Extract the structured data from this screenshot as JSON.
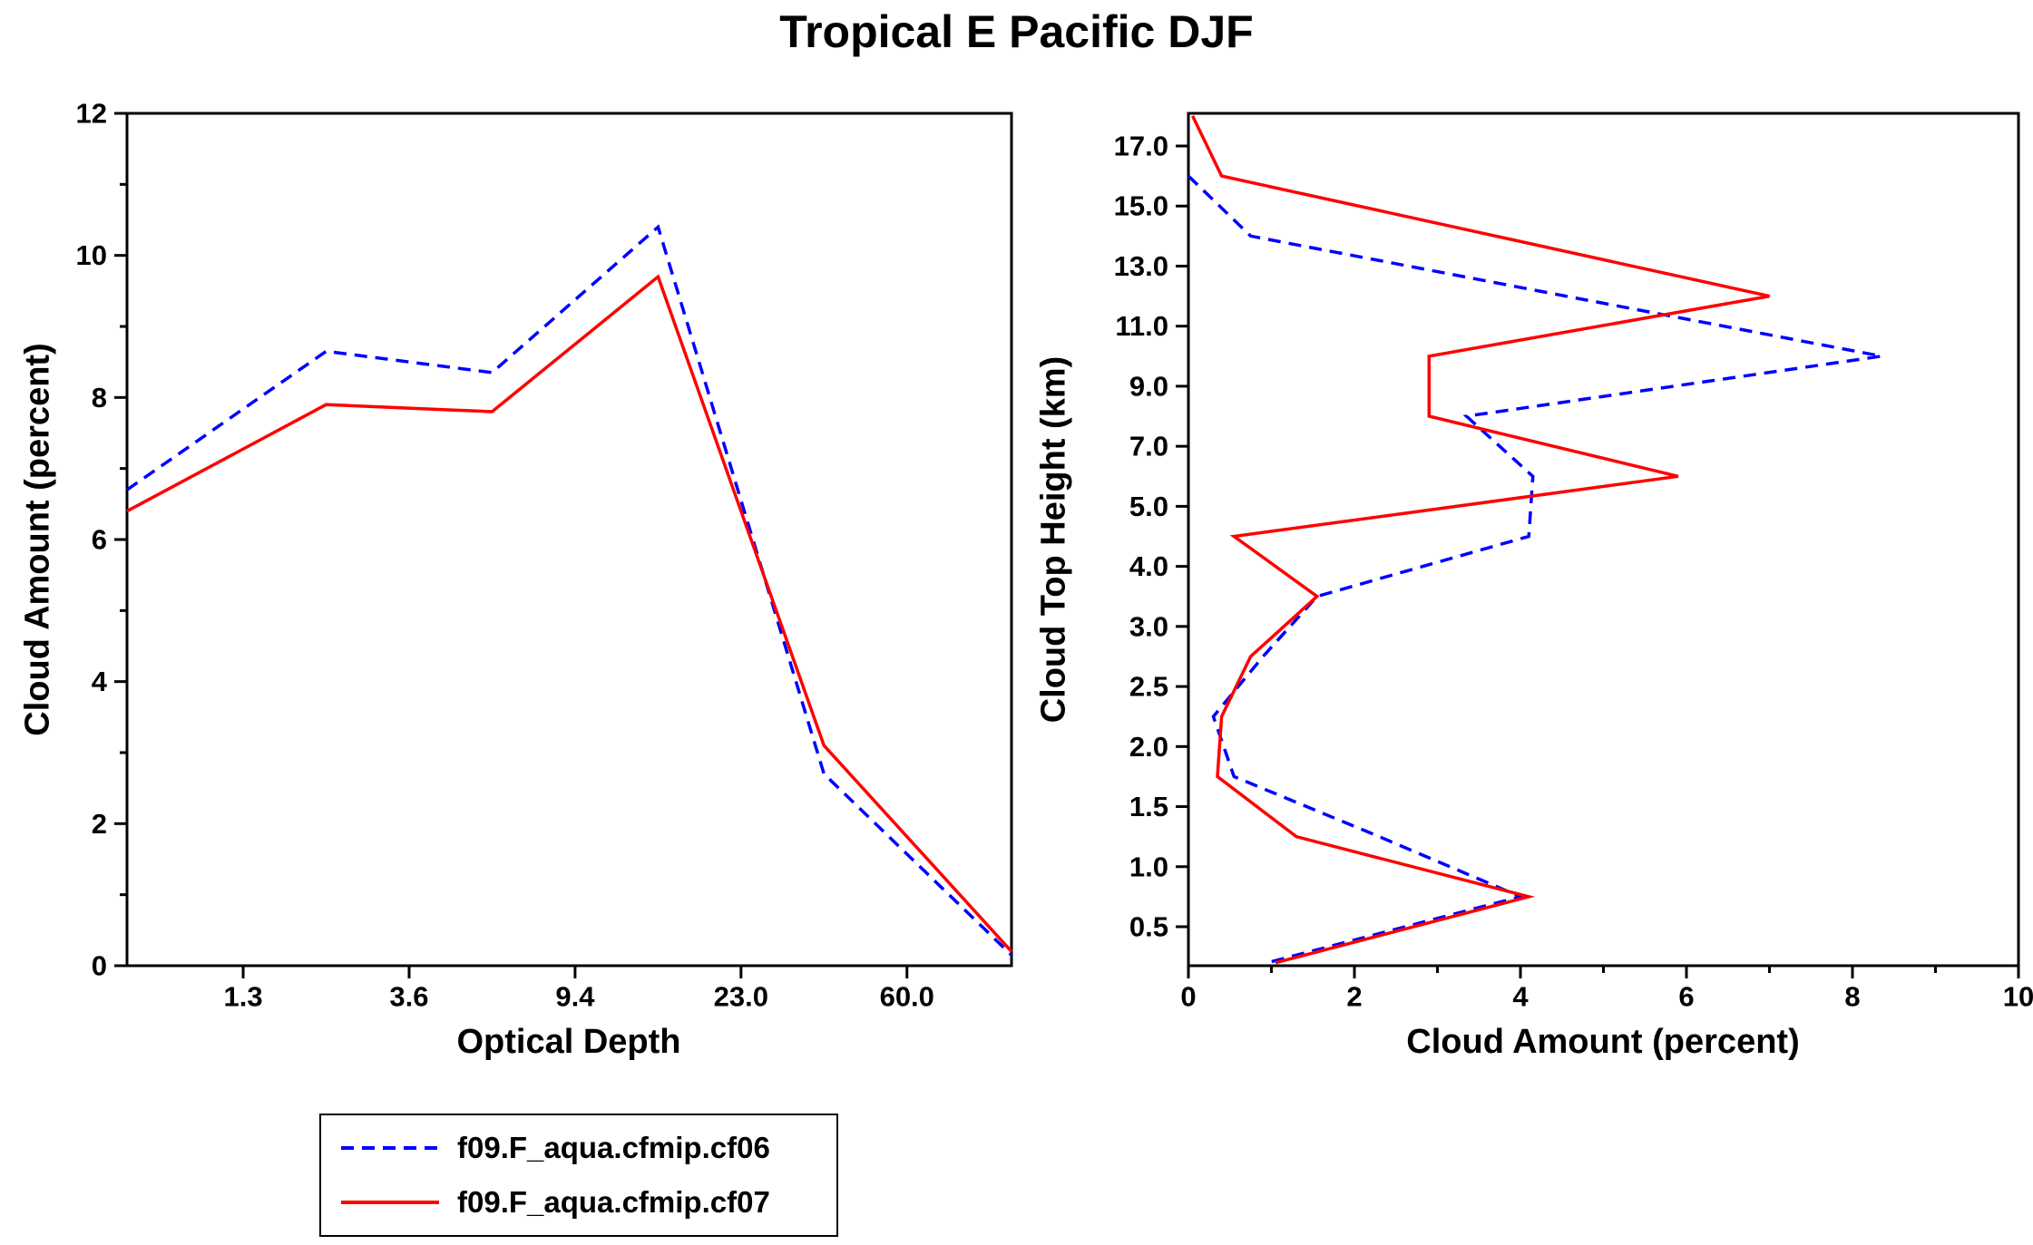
{
  "title": "Tropical E Pacific DJF",
  "legend": {
    "items": [
      {
        "label": "f09.F_aqua.cfmip.cf06",
        "color": "#0000ff",
        "style": "dashed"
      },
      {
        "label": "f09.F_aqua.cfmip.cf07",
        "color": "#ff0000",
        "style": "solid"
      }
    ]
  },
  "chart_data": [
    {
      "type": "line",
      "panel": "left",
      "title": "Tropical E Pacific DJF",
      "xlabel": "Optical Depth",
      "ylabel": "Cloud Amount (percent)",
      "x_ticks": {
        "positions": [
          1,
          2,
          3,
          4,
          5
        ],
        "labels": [
          "1.3",
          "3.6",
          "9.4",
          "23.0",
          "60.0"
        ]
      },
      "xlim": [
        0.3,
        5.63
      ],
      "ylim": [
        0,
        12
      ],
      "y_ticks": [
        0,
        2,
        4,
        6,
        8,
        10,
        12
      ],
      "y_minor_ticks": [
        1,
        3,
        5,
        7,
        9,
        11
      ],
      "grid": false,
      "series": [
        {
          "name": "f09.F_aqua.cfmip.cf06",
          "color": "#0000ff",
          "style": "dashed",
          "points": [
            [
              0.3,
              6.7
            ],
            [
              1.5,
              8.65
            ],
            [
              2.5,
              8.35
            ],
            [
              3.5,
              10.4
            ],
            [
              4.5,
              2.7
            ],
            [
              5.63,
              0.15
            ]
          ]
        },
        {
          "name": "f09.F_aqua.cfmip.cf07",
          "color": "#ff0000",
          "style": "solid",
          "points": [
            [
              0.3,
              6.4
            ],
            [
              1.5,
              7.9
            ],
            [
              2.5,
              7.8
            ],
            [
              3.5,
              9.7
            ],
            [
              4.5,
              3.1
            ],
            [
              5.63,
              0.2
            ]
          ]
        }
      ]
    },
    {
      "type": "line",
      "panel": "right",
      "xlabel": "Cloud Amount (percent)",
      "ylabel": "Cloud Top Height (km)",
      "xlim": [
        0,
        10
      ],
      "x_ticks": [
        0,
        2,
        4,
        6,
        8,
        10
      ],
      "x_minor_ticks": [
        1,
        3,
        5,
        7,
        9
      ],
      "y_ticks_km": [
        0.5,
        1.0,
        1.5,
        2.0,
        2.5,
        3.0,
        4.0,
        5.0,
        7.0,
        9.0,
        11.0,
        13.0,
        15.0,
        17.0
      ],
      "y_tick_labels": [
        "0.5",
        "1.0",
        "1.5",
        "2.0",
        "2.5",
        "3.0",
        "4.0",
        "5.0",
        "7.0",
        "9.0",
        "11.0",
        "13.0",
        "15.0",
        "17.0"
      ],
      "grid": false,
      "series": [
        {
          "name": "f09.F_aqua.cfmip.cf06",
          "color": "#0000ff",
          "style": "dashed",
          "points": [
            [
              0.0,
              16
            ],
            [
              0.75,
              14
            ],
            [
              4.55,
              12
            ],
            [
              8.35,
              10
            ],
            [
              3.35,
              8
            ],
            [
              4.15,
              6
            ],
            [
              4.1,
              4.5
            ],
            [
              1.55,
              3.5
            ],
            [
              0.9,
              2.75
            ],
            [
              0.3,
              2.25
            ],
            [
              0.55,
              1.75
            ],
            [
              2.3,
              1.25
            ],
            [
              4.0,
              0.75
            ],
            [
              0.95,
              0.2
            ]
          ]
        },
        {
          "name": "f09.F_aqua.cfmip.cf07",
          "color": "#ff0000",
          "style": "solid",
          "points": [
            [
              0.05,
              18
            ],
            [
              0.4,
              16
            ],
            [
              3.7,
              14
            ],
            [
              7.0,
              12
            ],
            [
              2.9,
              10
            ],
            [
              2.9,
              8
            ],
            [
              5.9,
              6
            ],
            [
              0.55,
              4.5
            ],
            [
              1.55,
              3.5
            ],
            [
              0.75,
              2.75
            ],
            [
              0.4,
              2.25
            ],
            [
              0.35,
              1.75
            ],
            [
              1.3,
              1.25
            ],
            [
              4.1,
              0.75
            ],
            [
              1.05,
              0.2
            ]
          ]
        }
      ]
    }
  ]
}
